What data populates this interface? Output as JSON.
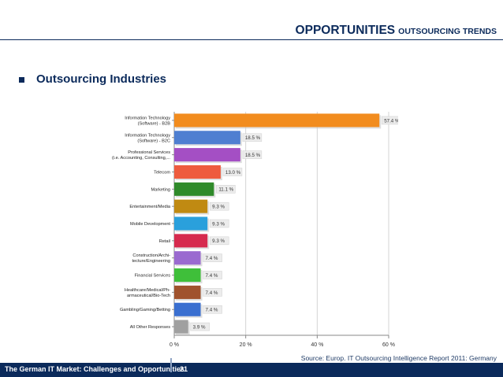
{
  "header": {
    "title_main": "OPPORTUNITIES",
    "title_sub": "OUTSOURCING TRENDS"
  },
  "section": {
    "heading": "Outsourcing Industries"
  },
  "chart_data": {
    "type": "bar",
    "orientation": "horizontal",
    "categories": [
      "Information Technology (Software) - B2B",
      "Information Technology (Software) - B2C",
      "Professional Services (i.e. Accounting, Consulting,...",
      "Telecom",
      "Marketing",
      "Entertainment/Media",
      "Mobile Development",
      "Retail",
      "Construction/Architecture/Engineering",
      "Financial Services",
      "Healthcare/Medical/Pharmaceutical/Bio-Tech",
      "Gambling/Gaming/Betting",
      "All Other Responses"
    ],
    "category_labels": [
      [
        "Information Technology",
        "(Software) - B2B"
      ],
      [
        "Information Technology",
        "(Software) - B2C"
      ],
      [
        "Professional Services",
        "(i.e. Accounting, Consulting,..."
      ],
      [
        "Telecom"
      ],
      [
        "Marketing"
      ],
      [
        "Entertainment/Media"
      ],
      [
        "Mobile Development"
      ],
      [
        "Retail"
      ],
      [
        "Construction/Archi-",
        "tecture/Engineering"
      ],
      [
        "Financial Services"
      ],
      [
        "Healthcare/Medical/Ph-",
        "armaceutical/Bio-Tech"
      ],
      [
        "Gambling/Gaming/Betting"
      ],
      [
        "All Other Responses"
      ]
    ],
    "values": [
      57.4,
      18.5,
      18.5,
      13.0,
      11.1,
      9.3,
      9.3,
      9.3,
      7.4,
      7.4,
      7.4,
      7.4,
      3.9
    ],
    "value_labels": [
      "57.4 %",
      "18.5 %",
      "18.5 %",
      "13.0 %",
      "11.1 %",
      "9.3 %",
      "9.3 %",
      "9.3 %",
      "7.4 %",
      "7.4 %",
      "7.4 %",
      "7.4 %",
      "3.9 %"
    ],
    "bar_colors": [
      "#f28c1e",
      "#4f7fd1",
      "#a44fc4",
      "#ee5b3e",
      "#2f8a2a",
      "#c08a12",
      "#2aa0dc",
      "#d62a4e",
      "#9a6ad0",
      "#3fbf3a",
      "#a0522d",
      "#3a6fd0",
      "#a0a0a0"
    ],
    "xlim": [
      0,
      60
    ],
    "xticks": [
      0,
      20,
      40,
      60
    ],
    "xtick_labels": [
      "0 %",
      "20 %",
      "40 %",
      "60 %"
    ],
    "grid": true,
    "title": "",
    "xlabel": "",
    "ylabel": ""
  },
  "source": {
    "text": "Source: Europ. IT Outsourcing Intelligence Report 2011: Germany"
  },
  "footer": {
    "title": "The German IT Market: Challenges and Opportunities",
    "page_number": "21"
  }
}
